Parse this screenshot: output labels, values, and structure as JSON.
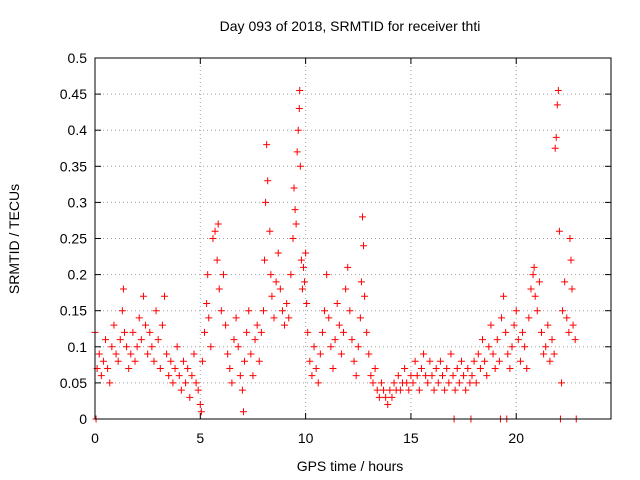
{
  "chart_data": {
    "type": "scatter",
    "title": "Day 093 of 2018, SRMTID for receiver thti",
    "xlabel": "GPS time / hours",
    "ylabel": "SRMTID / TECUs",
    "xlim": [
      0,
      24.5
    ],
    "ylim": [
      0,
      0.5
    ],
    "xticks": [
      0,
      5,
      10,
      15,
      20
    ],
    "xtick_labels": [
      "0",
      "5",
      "10",
      "15",
      "20"
    ],
    "yticks": [
      0,
      0.05,
      0.1,
      0.15,
      0.2,
      0.25,
      0.3,
      0.35,
      0.4,
      0.45,
      0.5
    ],
    "ytick_labels": [
      "0",
      "0.05",
      "0.1",
      "0.15",
      "0.2",
      "0.25",
      "0.3",
      "0.35",
      "0.4",
      "0.45",
      "0.5"
    ],
    "grid": true,
    "marker": "+",
    "marker_color": "#ff0000",
    "series": [
      {
        "name": "SRMTID",
        "points": [
          [
            0.0,
            0.12
          ],
          [
            0.05,
            0.0
          ],
          [
            0.1,
            0.07
          ],
          [
            0.2,
            0.09
          ],
          [
            0.3,
            0.06
          ],
          [
            0.4,
            0.08
          ],
          [
            0.5,
            0.11
          ],
          [
            0.6,
            0.07
          ],
          [
            0.7,
            0.05
          ],
          [
            0.8,
            0.1
          ],
          [
            0.9,
            0.13
          ],
          [
            1.0,
            0.09
          ],
          [
            1.1,
            0.08
          ],
          [
            1.2,
            0.11
          ],
          [
            1.3,
            0.15
          ],
          [
            1.35,
            0.18
          ],
          [
            1.4,
            0.12
          ],
          [
            1.5,
            0.1
          ],
          [
            1.6,
            0.07
          ],
          [
            1.7,
            0.09
          ],
          [
            1.8,
            0.12
          ],
          [
            1.9,
            0.08
          ],
          [
            2.0,
            0.1
          ],
          [
            2.1,
            0.14
          ],
          [
            2.2,
            0.11
          ],
          [
            2.3,
            0.17
          ],
          [
            2.4,
            0.13
          ],
          [
            2.5,
            0.09
          ],
          [
            2.6,
            0.12
          ],
          [
            2.7,
            0.1
          ],
          [
            2.8,
            0.08
          ],
          [
            2.9,
            0.15
          ],
          [
            3.0,
            0.11
          ],
          [
            3.1,
            0.07
          ],
          [
            3.2,
            0.13
          ],
          [
            3.3,
            0.17
          ],
          [
            3.4,
            0.09
          ],
          [
            3.5,
            0.06
          ],
          [
            3.6,
            0.08
          ],
          [
            3.7,
            0.05
          ],
          [
            3.8,
            0.07
          ],
          [
            3.9,
            0.1
          ],
          [
            4.0,
            0.06
          ],
          [
            4.1,
            0.04
          ],
          [
            4.2,
            0.08
          ],
          [
            4.3,
            0.05
          ],
          [
            4.4,
            0.07
          ],
          [
            4.5,
            0.03
          ],
          [
            4.6,
            0.06
          ],
          [
            4.7,
            0.09
          ],
          [
            4.8,
            0.05
          ],
          [
            4.9,
            0.04
          ],
          [
            5.0,
            0.02
          ],
          [
            5.05,
            0.01
          ],
          [
            5.1,
            0.08
          ],
          [
            5.2,
            0.12
          ],
          [
            5.3,
            0.16
          ],
          [
            5.35,
            0.2
          ],
          [
            5.4,
            0.14
          ],
          [
            5.5,
            0.1
          ],
          [
            5.6,
            0.25
          ],
          [
            5.7,
            0.26
          ],
          [
            5.8,
            0.22
          ],
          [
            5.85,
            0.27
          ],
          [
            5.9,
            0.18
          ],
          [
            6.0,
            0.15
          ],
          [
            6.1,
            0.2
          ],
          [
            6.2,
            0.13
          ],
          [
            6.3,
            0.09
          ],
          [
            6.4,
            0.07
          ],
          [
            6.5,
            0.05
          ],
          [
            6.6,
            0.11
          ],
          [
            6.7,
            0.14
          ],
          [
            6.8,
            0.1
          ],
          [
            6.9,
            0.06
          ],
          [
            7.0,
            0.04
          ],
          [
            7.05,
            0.01
          ],
          [
            7.1,
            0.08
          ],
          [
            7.2,
            0.12
          ],
          [
            7.3,
            0.15
          ],
          [
            7.4,
            0.09
          ],
          [
            7.5,
            0.06
          ],
          [
            7.6,
            0.11
          ],
          [
            7.7,
            0.13
          ],
          [
            7.8,
            0.08
          ],
          [
            7.9,
            0.12
          ],
          [
            8.0,
            0.15
          ],
          [
            8.05,
            0.22
          ],
          [
            8.1,
            0.3
          ],
          [
            8.15,
            0.38
          ],
          [
            8.2,
            0.33
          ],
          [
            8.3,
            0.26
          ],
          [
            8.35,
            0.2
          ],
          [
            8.4,
            0.17
          ],
          [
            8.5,
            0.14
          ],
          [
            8.6,
            0.19
          ],
          [
            8.7,
            0.23
          ],
          [
            8.8,
            0.18
          ],
          [
            8.9,
            0.15
          ],
          [
            9.0,
            0.13
          ],
          [
            9.1,
            0.16
          ],
          [
            9.2,
            0.14
          ],
          [
            9.3,
            0.2
          ],
          [
            9.4,
            0.25
          ],
          [
            9.45,
            0.32
          ],
          [
            9.5,
            0.29
          ],
          [
            9.55,
            0.27
          ],
          [
            9.6,
            0.37
          ],
          [
            9.65,
            0.4
          ],
          [
            9.7,
            0.43
          ],
          [
            9.72,
            0.455
          ],
          [
            9.75,
            0.35
          ],
          [
            9.8,
            0.22
          ],
          [
            9.85,
            0.18
          ],
          [
            9.9,
            0.21
          ],
          [
            9.95,
            0.19
          ],
          [
            10.0,
            0.23
          ],
          [
            10.05,
            0.16
          ],
          [
            10.1,
            0.12
          ],
          [
            10.2,
            0.08
          ],
          [
            10.3,
            0.06
          ],
          [
            10.4,
            0.1
          ],
          [
            10.5,
            0.07
          ],
          [
            10.6,
            0.05
          ],
          [
            10.7,
            0.09
          ],
          [
            10.8,
            0.12
          ],
          [
            10.9,
            0.15
          ],
          [
            11.0,
            0.2
          ],
          [
            11.1,
            0.14
          ],
          [
            11.2,
            0.1
          ],
          [
            11.3,
            0.07
          ],
          [
            11.4,
            0.11
          ],
          [
            11.5,
            0.16
          ],
          [
            11.6,
            0.13
          ],
          [
            11.7,
            0.09
          ],
          [
            11.8,
            0.12
          ],
          [
            11.9,
            0.18
          ],
          [
            12.0,
            0.21
          ],
          [
            12.1,
            0.15
          ],
          [
            12.2,
            0.11
          ],
          [
            12.3,
            0.08
          ],
          [
            12.4,
            0.06
          ],
          [
            12.5,
            0.1
          ],
          [
            12.6,
            0.14
          ],
          [
            12.65,
            0.19
          ],
          [
            12.7,
            0.28
          ],
          [
            12.75,
            0.24
          ],
          [
            12.8,
            0.17
          ],
          [
            12.9,
            0.12
          ],
          [
            13.0,
            0.09
          ],
          [
            13.1,
            0.06
          ],
          [
            13.2,
            0.05
          ],
          [
            13.3,
            0.07
          ],
          [
            13.4,
            0.04
          ],
          [
            13.5,
            0.03
          ],
          [
            13.6,
            0.05
          ],
          [
            13.7,
            0.04
          ],
          [
            13.8,
            0.03
          ],
          [
            13.9,
            0.02
          ],
          [
            14.0,
            0.04
          ],
          [
            14.1,
            0.03
          ],
          [
            14.2,
            0.05
          ],
          [
            14.3,
            0.04
          ],
          [
            14.4,
            0.06
          ],
          [
            14.5,
            0.04
          ],
          [
            14.6,
            0.05
          ],
          [
            14.7,
            0.07
          ],
          [
            14.8,
            0.05
          ],
          [
            14.9,
            0.04
          ],
          [
            15.0,
            0.06
          ],
          [
            15.1,
            0.05
          ],
          [
            15.2,
            0.08
          ],
          [
            15.3,
            0.06
          ],
          [
            15.4,
            0.04
          ],
          [
            15.5,
            0.07
          ],
          [
            15.6,
            0.09
          ],
          [
            15.7,
            0.06
          ],
          [
            15.8,
            0.05
          ],
          [
            15.9,
            0.08
          ],
          [
            16.0,
            0.06
          ],
          [
            16.1,
            0.04
          ],
          [
            16.2,
            0.07
          ],
          [
            16.3,
            0.05
          ],
          [
            16.4,
            0.08
          ],
          [
            16.5,
            0.06
          ],
          [
            16.6,
            0.04
          ],
          [
            16.7,
            0.07
          ],
          [
            16.8,
            0.05
          ],
          [
            16.9,
            0.09
          ],
          [
            17.0,
            0.06
          ],
          [
            17.05,
            0.0
          ],
          [
            17.1,
            0.04
          ],
          [
            17.2,
            0.07
          ],
          [
            17.3,
            0.05
          ],
          [
            17.4,
            0.08
          ],
          [
            17.5,
            0.06
          ],
          [
            17.6,
            0.04
          ],
          [
            17.7,
            0.07
          ],
          [
            17.8,
            0.05
          ],
          [
            17.85,
            0.0
          ],
          [
            17.9,
            0.06
          ],
          [
            18.0,
            0.08
          ],
          [
            18.1,
            0.05
          ],
          [
            18.2,
            0.09
          ],
          [
            18.3,
            0.07
          ],
          [
            18.4,
            0.11
          ],
          [
            18.5,
            0.08
          ],
          [
            18.6,
            0.06
          ],
          [
            18.7,
            0.1
          ],
          [
            18.8,
            0.13
          ],
          [
            18.9,
            0.09
          ],
          [
            19.0,
            0.07
          ],
          [
            19.1,
            0.11
          ],
          [
            19.2,
            0.08
          ],
          [
            19.25,
            0.0
          ],
          [
            19.3,
            0.14
          ],
          [
            19.4,
            0.17
          ],
          [
            19.5,
            0.12
          ],
          [
            19.55,
            0.0
          ],
          [
            19.6,
            0.09
          ],
          [
            19.7,
            0.07
          ],
          [
            19.8,
            0.1
          ],
          [
            19.9,
            0.13
          ],
          [
            20.0,
            0.15
          ],
          [
            20.1,
            0.11
          ],
          [
            20.2,
            0.08
          ],
          [
            20.3,
            0.12
          ],
          [
            20.4,
            0.1
          ],
          [
            20.5,
            0.07
          ],
          [
            20.6,
            0.14
          ],
          [
            20.7,
            0.18
          ],
          [
            20.8,
            0.2
          ],
          [
            20.85,
            0.21
          ],
          [
            20.9,
            0.17
          ],
          [
            21.0,
            0.15
          ],
          [
            21.1,
            0.19
          ],
          [
            21.2,
            0.12
          ],
          [
            21.3,
            0.09
          ],
          [
            21.4,
            0.1
          ],
          [
            21.5,
            0.13
          ],
          [
            21.6,
            0.08
          ],
          [
            21.7,
            0.11
          ],
          [
            21.8,
            0.09
          ],
          [
            21.85,
            0.375
          ],
          [
            21.9,
            0.39
          ],
          [
            21.95,
            0.435
          ],
          [
            22.0,
            0.455
          ],
          [
            22.05,
            0.26
          ],
          [
            22.1,
            0.0
          ],
          [
            22.15,
            0.05
          ],
          [
            22.2,
            0.15
          ],
          [
            22.3,
            0.19
          ],
          [
            22.4,
            0.14
          ],
          [
            22.5,
            0.12
          ],
          [
            22.55,
            0.25
          ],
          [
            22.6,
            0.22
          ],
          [
            22.65,
            0.18
          ],
          [
            22.7,
            0.13
          ],
          [
            22.8,
            0.11
          ],
          [
            22.85,
            0.0
          ]
        ]
      }
    ]
  }
}
